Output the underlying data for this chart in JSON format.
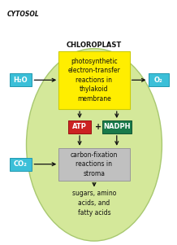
{
  "chloroplast_color": "#d4e89a",
  "chloroplast_edge": "#a8c870",
  "cytosol_label": "CYTOSOL",
  "chloroplast_label": "CHLOROPLAST",
  "h2o_label": "H₂O",
  "o2_label": "O₂",
  "co2_label": "CO₂",
  "cyan_box_color": "#3bbfd8",
  "cyan_box_edge": "#2299b0",
  "yellow_box_color": "#ffee00",
  "yellow_box_edge": "#cccc00",
  "yellow_box_text": "photosynthetic\nelectron-transfer\nreactions in\nthylakoid\nmembrane",
  "atp_color": "#cc2222",
  "atp_edge": "#991111",
  "atp_text": "ATP",
  "nadph_color": "#1a7a4a",
  "nadph_edge": "#115533",
  "nadph_text": "NADPH",
  "gray_box_color": "#c0c0c0",
  "gray_box_edge": "#999999",
  "gray_box_text": "carbon-fixation\nreactions in\nstroma",
  "output_text": "sugars, amino\nacids, and\nfatty acids",
  "arrow_color": "#111111",
  "font_color": "#111111",
  "plus_text": "+"
}
